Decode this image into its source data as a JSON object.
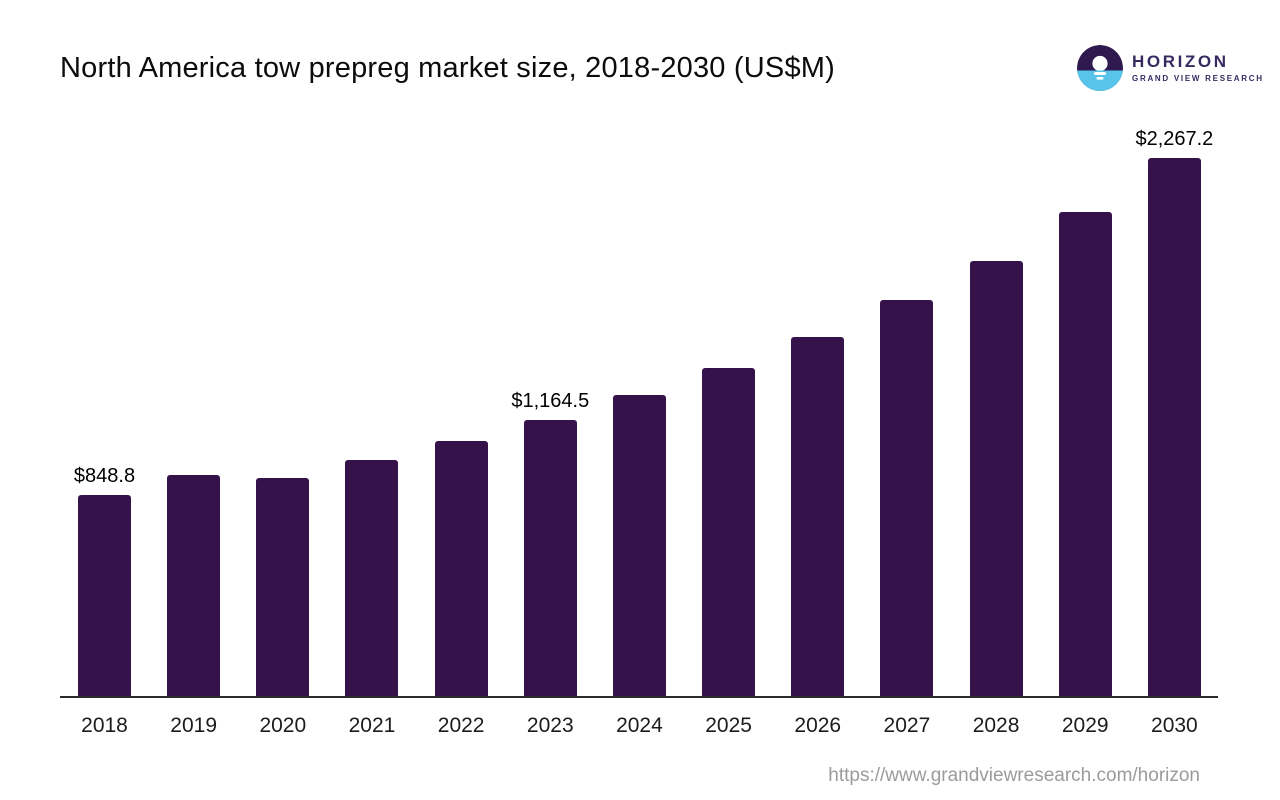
{
  "title": "North America tow prepreg market size, 2018-2030 (US$M)",
  "logo": {
    "name": "HORIZON",
    "subtitle": "GRAND VIEW RESEARCH",
    "icon": "horizon-logo-icon",
    "wordmark_color": "#372a61",
    "icon_dark_color": "#2e1a4e",
    "icon_blue_color": "#59c4ea"
  },
  "footer": {
    "url": "https://www.grandviewresearch.com/horizon"
  },
  "chart_data": {
    "type": "bar",
    "title": "North America tow prepreg market size, 2018-2030 (US$M)",
    "xlabel": "",
    "ylabel": "",
    "categories": [
      "2018",
      "2019",
      "2020",
      "2021",
      "2022",
      "2023",
      "2024",
      "2025",
      "2026",
      "2027",
      "2028",
      "2029",
      "2030"
    ],
    "series": [
      {
        "name": "Market size (US$M)",
        "values": [
          848.8,
          932,
          920,
          995,
          1075,
          1164.5,
          1268,
          1382,
          1512,
          1667,
          1835,
          2041,
          2267.2
        ]
      }
    ],
    "data_labels": {
      "2018": "$848.8",
      "2023": "$1,164.5",
      "2030": "$2,267.2"
    },
    "ylim": [
      0,
      2267.2
    ],
    "grid": false,
    "legend": false,
    "bar_color": "#36124a",
    "axis_line_color": "#2b2b2b",
    "tick_color": "#1c1c1c",
    "value_label_color": "#000000"
  }
}
